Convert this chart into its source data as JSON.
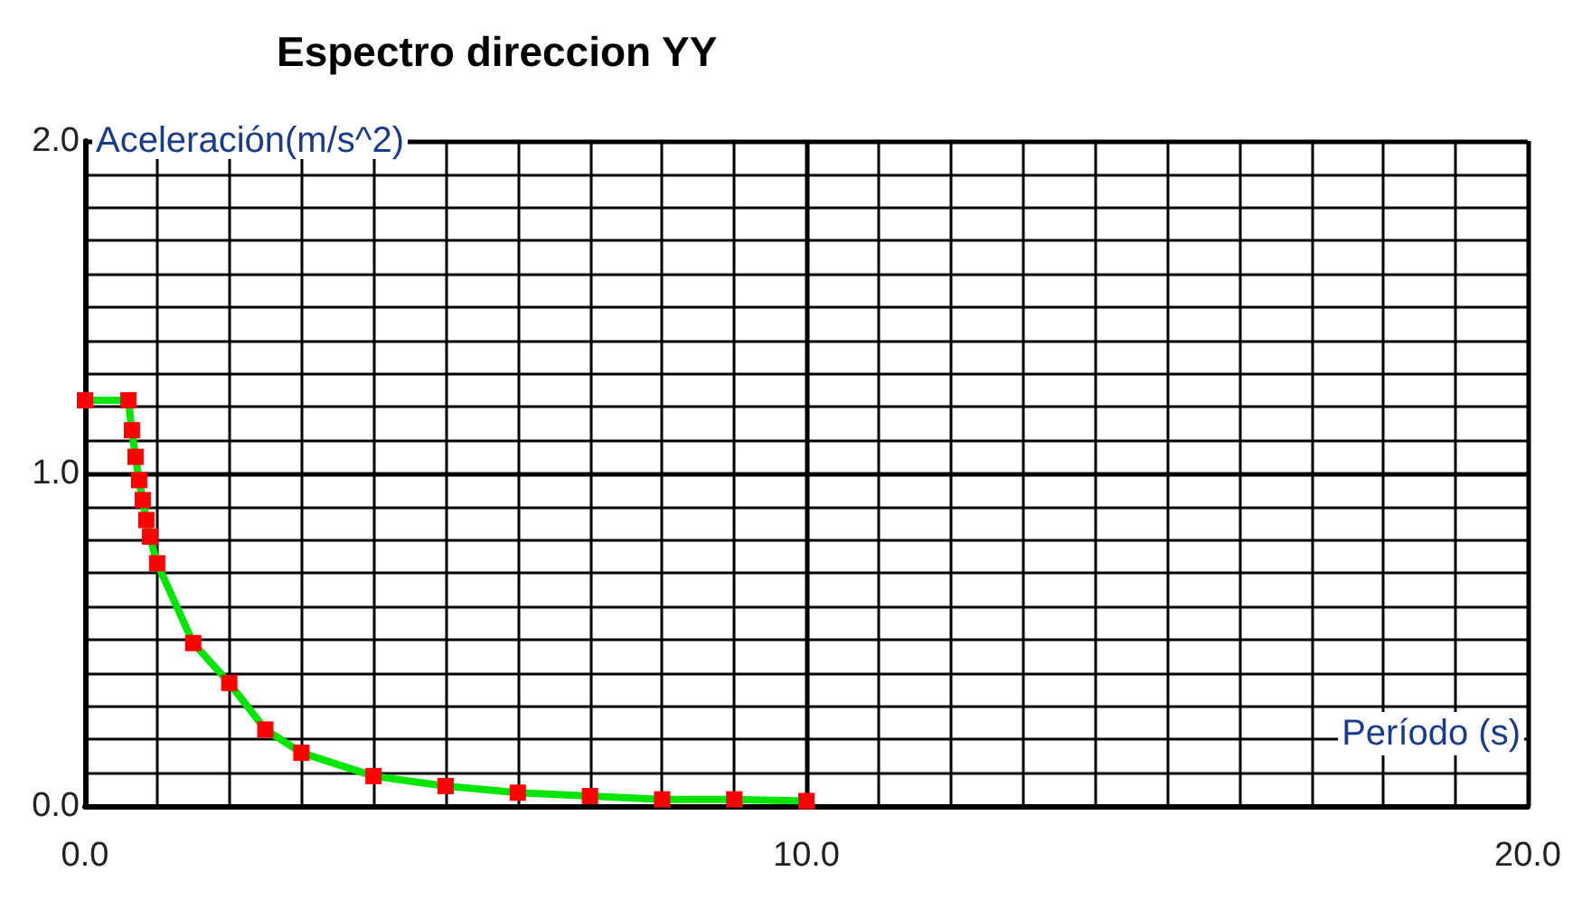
{
  "chart_data": {
    "type": "line",
    "title": "Espectro direccion YY",
    "xlabel": "Período (s)",
    "ylabel": "Aceleración(m/s^2)",
    "x": [
      0,
      0.6,
      0.65,
      0.7,
      0.75,
      0.8,
      0.85,
      0.9,
      1.0,
      1.5,
      2.0,
      2.5,
      3.0,
      4.0,
      5.0,
      6.0,
      7.0,
      8.0,
      9.0,
      10.0
    ],
    "series": [
      {
        "color": "#00e600",
        "values": [
          1.22,
          1.22,
          1.13,
          1.05,
          0.98,
          0.92,
          0.86,
          0.81,
          0.73,
          0.49,
          0.37,
          0.23,
          0.16,
          0.09,
          0.06,
          0.04,
          0.03,
          0.02,
          0.02,
          0.015
        ],
        "colors": [
          "#ff0000",
          "#ff0000",
          "#ff0000",
          "#ff0000",
          "#ff0000",
          "#ff0000",
          "#ff0000",
          "#ff0000",
          "#ff0000",
          "#ff0000",
          "#ff0000",
          "#ff0000",
          "#ff0000",
          "#ff0000",
          "#ff0000",
          "#ff0000",
          "#ff0000",
          "#ff0000",
          "#ff0000",
          "#ff0000"
        ]
      }
    ],
    "marker": "square",
    "grid": true,
    "xlim": [
      0,
      20
    ],
    "xticks": [
      {
        "value": 0,
        "label": "0.0"
      },
      {
        "value": 1,
        "label": null
      },
      {
        "value": 10,
        "label": "10.0"
      },
      {
        "value": 20,
        "label": "20.0"
      }
    ],
    "ylim": [
      0,
      2
    ],
    "yticks": [
      {
        "value": 0,
        "label": "0.0"
      },
      {
        "value": 0.1,
        "label": null
      },
      {
        "value": 1,
        "label": "1.0"
      },
      {
        "value": 2,
        "label": "2.0"
      }
    ]
  }
}
